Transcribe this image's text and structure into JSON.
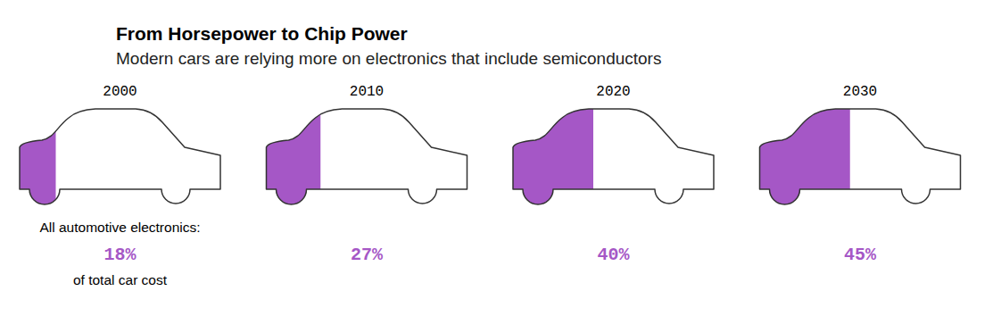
{
  "chart_data": {
    "type": "pictogram",
    "title": "From Horsepower to Chip Power",
    "subtitle": "Modern cars are relying more on electronics that include semiconductors",
    "categories": [
      "2000",
      "2010",
      "2020",
      "2030"
    ],
    "values": [
      18,
      27,
      40,
      45
    ],
    "value_labels": [
      "18%",
      "27%",
      "40%",
      "45%"
    ],
    "annotations": [
      "All automotive electronics:",
      "of total car cost"
    ],
    "xlim": [
      0,
      100
    ],
    "color": "#a557c6"
  }
}
